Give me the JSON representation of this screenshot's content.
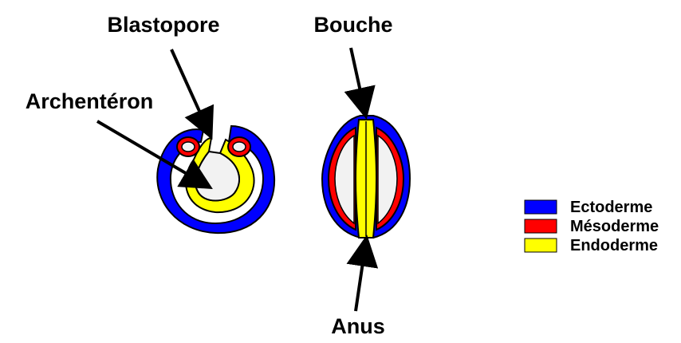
{
  "labels": {
    "blastopore": "Blastopore",
    "archenteron": "Archentéron",
    "mouth": "Bouche",
    "anus": "Anus"
  },
  "legend": [
    {
      "label": "Ectoderme",
      "color": "#0000ff"
    },
    {
      "label": "Mésoderme",
      "color": "#ff0000"
    },
    {
      "label": "Endoderme",
      "color": "#ffff00"
    }
  ],
  "colors": {
    "outline": "#000000",
    "cavity": "#f2f2f2",
    "ectoderm": "#0000ff",
    "mesoderm": "#ff0000",
    "endoderm": "#ffff00"
  }
}
